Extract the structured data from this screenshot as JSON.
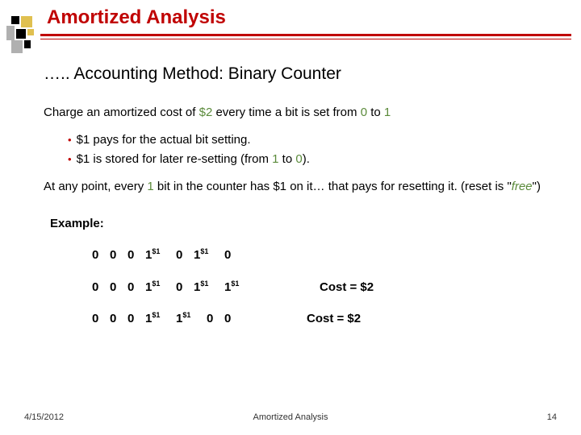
{
  "title": "Amortized Analysis",
  "subtitle": "….. Accounting Method: Binary Counter",
  "line1_a": "Charge an amortized cost of ",
  "line1_b": "$2",
  "line1_c": " every time a bit is set from ",
  "line1_d": "0",
  "line1_e": " to ",
  "line1_f": "1",
  "bullet1": "$1 pays for the actual bit setting.",
  "bullet2_a": "$1 is stored for later re-setting (from ",
  "bullet2_b": "1",
  "bullet2_c": " to ",
  "bullet2_d": "0",
  "bullet2_e": ").",
  "para2_a": "At any point, every ",
  "para2_b": "1",
  "para2_c": " bit in the counter has $1 on it… that pays for resetting it. (reset is \"",
  "para2_d": "free",
  "para2_e": "\")",
  "example_label": "Example:",
  "rows": [
    {
      "bits": [
        {
          "v": "0",
          "sup": ""
        },
        {
          "v": "0",
          "sup": ""
        },
        {
          "v": "0",
          "sup": ""
        },
        {
          "v": "1",
          "sup": "$1"
        },
        {
          "v": "0",
          "sup": ""
        },
        {
          "v": "1",
          "sup": "$1"
        },
        {
          "v": "0",
          "sup": ""
        }
      ],
      "cost": ""
    },
    {
      "bits": [
        {
          "v": "0",
          "sup": ""
        },
        {
          "v": "0",
          "sup": ""
        },
        {
          "v": "0",
          "sup": ""
        },
        {
          "v": "1",
          "sup": "$1"
        },
        {
          "v": "0",
          "sup": ""
        },
        {
          "v": "1",
          "sup": "$1"
        },
        {
          "v": "1",
          "sup": "$1"
        }
      ],
      "cost": "Cost = $2"
    },
    {
      "bits": [
        {
          "v": "0",
          "sup": ""
        },
        {
          "v": "0",
          "sup": ""
        },
        {
          "v": "0",
          "sup": ""
        },
        {
          "v": "1",
          "sup": "$1"
        },
        {
          "v": "1",
          "sup": "$1"
        },
        {
          "v": "0",
          "sup": ""
        },
        {
          "v": "0",
          "sup": ""
        }
      ],
      "cost": "Cost = $2"
    }
  ],
  "footer_date": "4/15/2012",
  "footer_center": "Amortized Analysis",
  "footer_page": "14",
  "colors": {
    "accent": "#c00000",
    "green": "#5a8a3a",
    "logo_yellow": "#e0c050",
    "logo_black": "#000000",
    "logo_gray": "#b0b0b0"
  }
}
